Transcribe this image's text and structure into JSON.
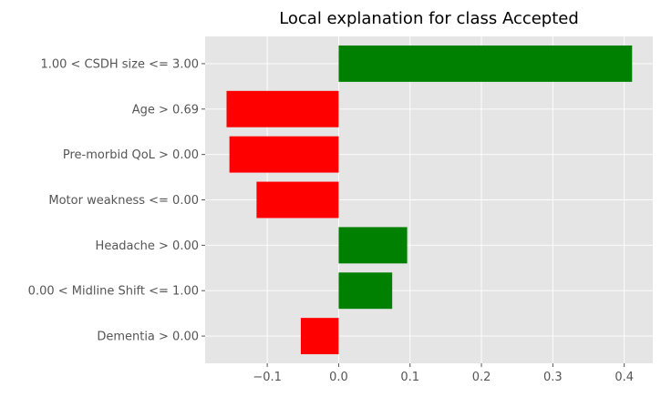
{
  "chart_data": {
    "type": "bar",
    "orientation": "horizontal",
    "title": "Local explanation for class Accepted",
    "xlabel": "",
    "ylabel": "",
    "categories": [
      "1.00 < CSDH size <= 3.00",
      "Age > 0.69",
      "Pre-morbid QoL > 0.00",
      "Motor weakness <= 0.00",
      "Headache > 0.00",
      "0.00 < Midline Shift <= 1.00",
      "Dementia > 0.00"
    ],
    "values": [
      0.411,
      -0.157,
      -0.153,
      -0.115,
      0.096,
      0.075,
      -0.053
    ],
    "xlim": [
      -0.187,
      0.44
    ],
    "xticks": [
      -0.1,
      0.0,
      0.1,
      0.2,
      0.3,
      0.4
    ],
    "xtick_labels": [
      "−0.1",
      "0.0",
      "0.1",
      "0.2",
      "0.3",
      "0.4"
    ],
    "grid": true,
    "style": "ggplot",
    "colors": {
      "positive": "#008000",
      "negative": "#ff0000",
      "background": "#e5e5e5",
      "grid": "#ffffff",
      "tick_text": "#555555"
    }
  }
}
